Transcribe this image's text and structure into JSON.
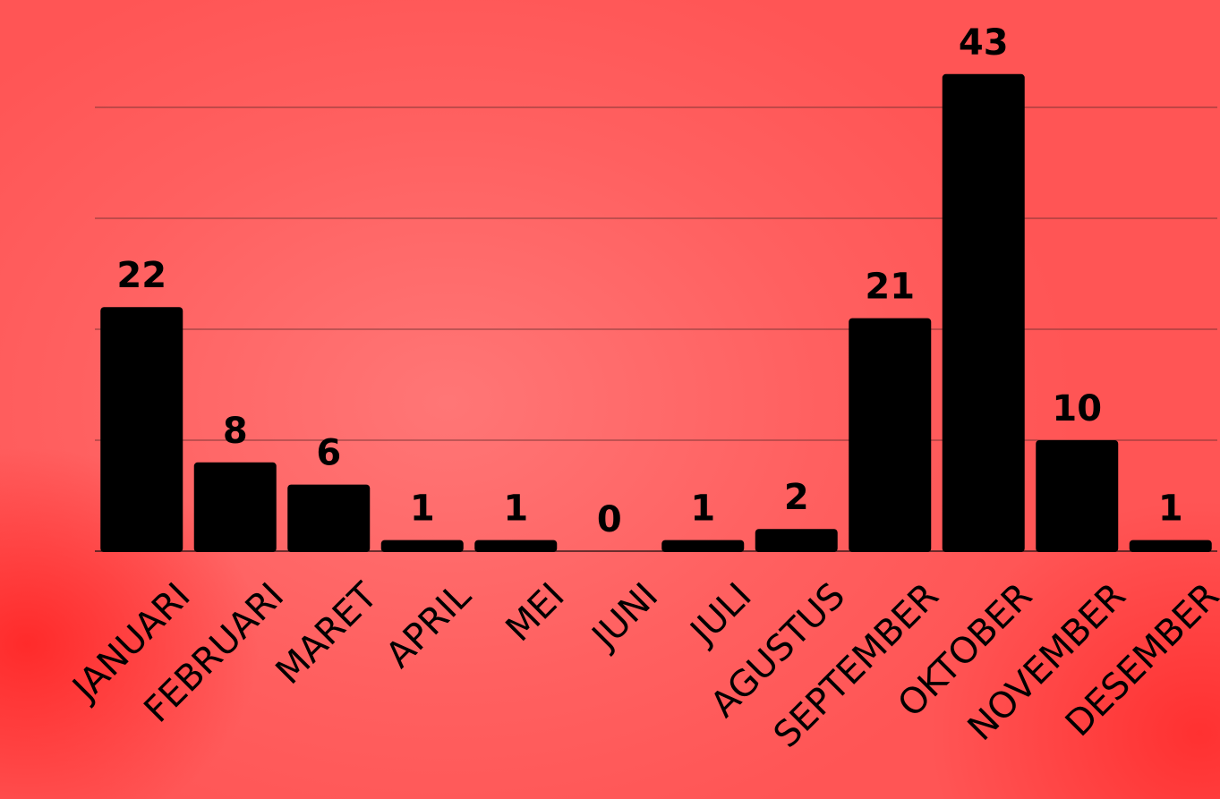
{
  "chart_data": {
    "type": "bar",
    "categories": [
      "JANUARI",
      "FEBRUARI",
      "MARET",
      "APRIL",
      "MEI",
      "JUNI",
      "JULI",
      "AGUSTUS",
      "SEPTEMBER",
      "OKTOBER",
      "NOVEMBER",
      "DESEMBER"
    ],
    "values": [
      22,
      8,
      6,
      1,
      1,
      0,
      1,
      2,
      21,
      43,
      10,
      1
    ],
    "title": "",
    "xlabel": "",
    "ylabel": "",
    "ylim": [
      0,
      50
    ],
    "grid": true,
    "data_labels": true,
    "colors": {
      "bar": "#000000",
      "background": "#ff5a5a"
    }
  }
}
